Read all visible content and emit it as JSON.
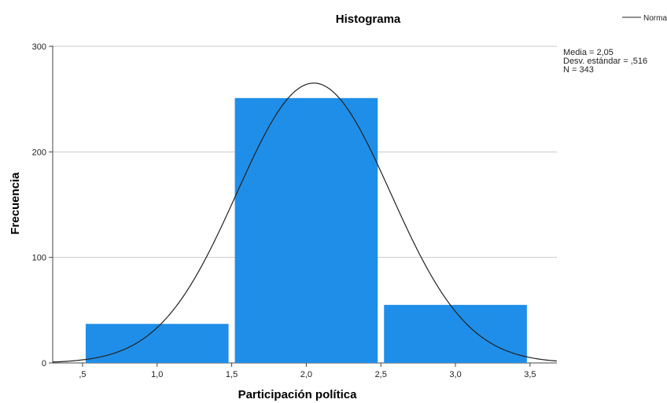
{
  "chart_data": {
    "type": "bar",
    "title": "Histograma",
    "xlabel": "Participación política",
    "ylabel": "Frecuencia",
    "bins": [
      {
        "from": 0.5,
        "to": 1.5,
        "value": 37
      },
      {
        "from": 1.5,
        "to": 2.5,
        "value": 251
      },
      {
        "from": 2.5,
        "to": 3.5,
        "value": 55
      }
    ],
    "xlim": [
      0.3,
      3.68
    ],
    "ylim": [
      0,
      300
    ],
    "x_ticks": [
      {
        "value": 0.5,
        "label": ",5"
      },
      {
        "value": 1.0,
        "label": "1,0"
      },
      {
        "value": 1.5,
        "label": "1,5"
      },
      {
        "value": 2.0,
        "label": "2,0"
      },
      {
        "value": 2.5,
        "label": "2,5"
      },
      {
        "value": 3.0,
        "label": "3,0"
      },
      {
        "value": 3.5,
        "label": "3,5"
      }
    ],
    "y_ticks": [
      {
        "value": 0,
        "label": "0"
      },
      {
        "value": 100,
        "label": "100"
      },
      {
        "value": 200,
        "label": "200"
      },
      {
        "value": 300,
        "label": "300"
      }
    ],
    "normal_curve": {
      "mean": 2.05,
      "sd": 0.516,
      "n": 343,
      "bin_width": 1.0
    },
    "stats": [
      "Media = 2,05",
      "Desv. estándar = ,516",
      "N = 343"
    ],
    "legend": {
      "label": "Normal",
      "position": "top-right"
    },
    "grid": {
      "horizontal": true,
      "vertical": false
    },
    "colors": {
      "bar": "#1f8ee8",
      "curve": "#222222",
      "grid": "#c8c8c8",
      "axis": "#444444"
    }
  }
}
